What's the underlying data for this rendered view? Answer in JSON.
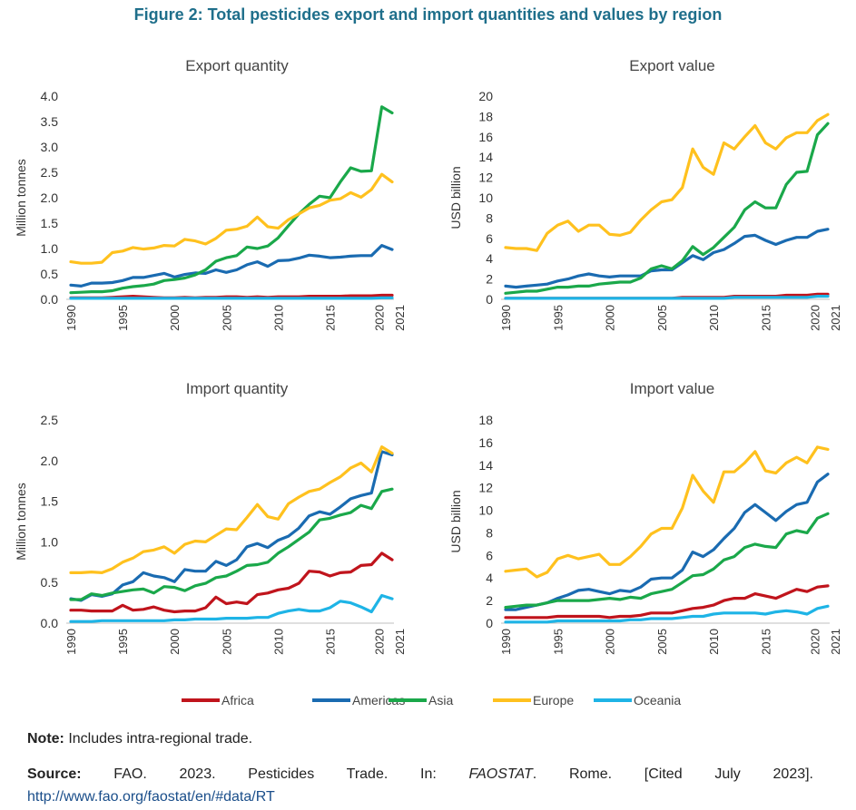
{
  "figure_title": "Figure 2: Total pesticides export and import quantities and values by region",
  "colors": {
    "Africa": "#c0141c",
    "Americas": "#1a6bb1",
    "Asia": "#1aa84a",
    "Europe": "#ffc11e",
    "Oceania": "#1eb4e6"
  },
  "legend": [
    "Africa",
    "Americas",
    "Asia",
    "Europe",
    "Oceania"
  ],
  "chart_data": [
    {
      "type": "line",
      "title": "Export quantity",
      "ylabel": "Million tonnes",
      "ylim": [
        0,
        4.0
      ],
      "yticks": [
        "0.0",
        "0.5",
        "1.0",
        "1.5",
        "2.0",
        "2.5",
        "3.0",
        "3.5",
        "4.0"
      ],
      "xticks": [
        "1990",
        "1995",
        "2000",
        "2005",
        "2010",
        "2015",
        "2020",
        "2021"
      ],
      "x": [
        1990,
        1991,
        1992,
        1993,
        1994,
        1995,
        1996,
        1997,
        1998,
        1999,
        2000,
        2001,
        2002,
        2003,
        2004,
        2005,
        2006,
        2007,
        2008,
        2009,
        2010,
        2011,
        2012,
        2013,
        2014,
        2015,
        2016,
        2017,
        2018,
        2019,
        2020,
        2021
      ],
      "series": [
        {
          "name": "Africa",
          "values": [
            0.03,
            0.03,
            0.03,
            0.03,
            0.04,
            0.05,
            0.06,
            0.05,
            0.04,
            0.03,
            0.03,
            0.04,
            0.03,
            0.04,
            0.04,
            0.05,
            0.05,
            0.04,
            0.05,
            0.04,
            0.05,
            0.05,
            0.05,
            0.06,
            0.06,
            0.06,
            0.06,
            0.07,
            0.07,
            0.07,
            0.08,
            0.08
          ]
        },
        {
          "name": "Americas",
          "values": [
            0.28,
            0.26,
            0.32,
            0.32,
            0.33,
            0.37,
            0.43,
            0.43,
            0.47,
            0.51,
            0.44,
            0.49,
            0.52,
            0.51,
            0.58,
            0.53,
            0.58,
            0.68,
            0.74,
            0.65,
            0.76,
            0.77,
            0.81,
            0.87,
            0.85,
            0.82,
            0.83,
            0.85,
            0.86,
            0.86,
            1.06,
            0.98
          ]
        },
        {
          "name": "Asia",
          "values": [
            0.13,
            0.14,
            0.15,
            0.15,
            0.17,
            0.22,
            0.25,
            0.27,
            0.3,
            0.37,
            0.39,
            0.42,
            0.48,
            0.58,
            0.75,
            0.82,
            0.86,
            1.03,
            1.0,
            1.05,
            1.21,
            1.45,
            1.68,
            1.87,
            2.03,
            2.0,
            2.31,
            2.59,
            2.52,
            2.53,
            3.79,
            3.67
          ]
        },
        {
          "name": "Europe",
          "values": [
            0.74,
            0.71,
            0.71,
            0.73,
            0.92,
            0.95,
            1.02,
            0.99,
            1.01,
            1.06,
            1.05,
            1.18,
            1.15,
            1.09,
            1.2,
            1.36,
            1.38,
            1.44,
            1.62,
            1.43,
            1.4,
            1.57,
            1.68,
            1.8,
            1.85,
            1.95,
            1.98,
            2.1,
            2.01,
            2.16,
            2.46,
            2.31
          ]
        },
        {
          "name": "Oceania",
          "values": [
            0.02,
            0.02,
            0.02,
            0.02,
            0.02,
            0.02,
            0.02,
            0.02,
            0.02,
            0.02,
            0.02,
            0.02,
            0.02,
            0.02,
            0.02,
            0.02,
            0.02,
            0.02,
            0.02,
            0.02,
            0.02,
            0.02,
            0.02,
            0.02,
            0.02,
            0.02,
            0.02,
            0.02,
            0.02,
            0.02,
            0.03,
            0.03
          ]
        }
      ]
    },
    {
      "type": "line",
      "title": "Export value",
      "ylabel": "USD billion",
      "ylim": [
        0,
        20
      ],
      "yticks": [
        "0",
        "2",
        "4",
        "6",
        "8",
        "10",
        "12",
        "14",
        "16",
        "18",
        "20"
      ],
      "xticks": [
        "1990",
        "1995",
        "2000",
        "2005",
        "2010",
        "2015",
        "2020",
        "2021"
      ],
      "x": [
        1990,
        1991,
        1992,
        1993,
        1994,
        1995,
        1996,
        1997,
        1998,
        1999,
        2000,
        2001,
        2002,
        2003,
        2004,
        2005,
        2006,
        2007,
        2008,
        2009,
        2010,
        2011,
        2012,
        2013,
        2014,
        2015,
        2016,
        2017,
        2018,
        2019,
        2020,
        2021
      ],
      "series": [
        {
          "name": "Africa",
          "values": [
            0.1,
            0.1,
            0.1,
            0.1,
            0.1,
            0.1,
            0.1,
            0.1,
            0.1,
            0.1,
            0.1,
            0.1,
            0.1,
            0.1,
            0.1,
            0.1,
            0.1,
            0.2,
            0.2,
            0.2,
            0.2,
            0.2,
            0.3,
            0.3,
            0.3,
            0.3,
            0.3,
            0.4,
            0.4,
            0.4,
            0.5,
            0.5
          ]
        },
        {
          "name": "Americas",
          "values": [
            1.3,
            1.2,
            1.3,
            1.4,
            1.5,
            1.8,
            2.0,
            2.3,
            2.5,
            2.3,
            2.2,
            2.3,
            2.3,
            2.3,
            2.8,
            2.9,
            2.9,
            3.6,
            4.3,
            3.9,
            4.6,
            4.9,
            5.5,
            6.2,
            6.3,
            5.8,
            5.4,
            5.8,
            6.1,
            6.1,
            6.7,
            6.9
          ]
        },
        {
          "name": "Asia",
          "values": [
            0.6,
            0.7,
            0.8,
            0.8,
            1.0,
            1.2,
            1.2,
            1.3,
            1.3,
            1.5,
            1.6,
            1.7,
            1.7,
            2.1,
            3.0,
            3.3,
            3.0,
            3.8,
            5.2,
            4.4,
            5.1,
            6.1,
            7.1,
            8.8,
            9.6,
            9.0,
            9.0,
            11.3,
            12.5,
            12.6,
            16.2,
            17.3
          ]
        },
        {
          "name": "Europe",
          "values": [
            5.1,
            5.0,
            5.0,
            4.8,
            6.5,
            7.3,
            7.7,
            6.7,
            7.3,
            7.3,
            6.4,
            6.3,
            6.6,
            7.8,
            8.8,
            9.6,
            9.8,
            11.0,
            14.8,
            13.0,
            12.3,
            15.4,
            14.8,
            16.0,
            17.1,
            15.4,
            14.8,
            15.9,
            16.4,
            16.4,
            17.6,
            18.2
          ]
        },
        {
          "name": "Oceania",
          "values": [
            0.1,
            0.1,
            0.1,
            0.1,
            0.1,
            0.1,
            0.1,
            0.1,
            0.1,
            0.1,
            0.1,
            0.1,
            0.1,
            0.1,
            0.1,
            0.1,
            0.1,
            0.1,
            0.1,
            0.1,
            0.1,
            0.1,
            0.2,
            0.2,
            0.2,
            0.2,
            0.2,
            0.2,
            0.2,
            0.2,
            0.3,
            0.3
          ]
        }
      ]
    },
    {
      "type": "line",
      "title": "Import quantity",
      "ylabel": "Million tonnes",
      "ylim": [
        0,
        2.5
      ],
      "yticks": [
        "0.0",
        "0.5",
        "1.0",
        "1.5",
        "2.0",
        "2.5"
      ],
      "xticks": [
        "1990",
        "1995",
        "2000",
        "2005",
        "2010",
        "2015",
        "2020",
        "2021"
      ],
      "x": [
        1990,
        1991,
        1992,
        1993,
        1994,
        1995,
        1996,
        1997,
        1998,
        1999,
        2000,
        2001,
        2002,
        2003,
        2004,
        2005,
        2006,
        2007,
        2008,
        2009,
        2010,
        2011,
        2012,
        2013,
        2014,
        2015,
        2016,
        2017,
        2018,
        2019,
        2020,
        2021
      ],
      "series": [
        {
          "name": "Africa",
          "values": [
            0.16,
            0.16,
            0.15,
            0.15,
            0.15,
            0.22,
            0.16,
            0.17,
            0.2,
            0.16,
            0.14,
            0.15,
            0.15,
            0.19,
            0.32,
            0.24,
            0.26,
            0.24,
            0.35,
            0.37,
            0.41,
            0.43,
            0.49,
            0.64,
            0.63,
            0.58,
            0.62,
            0.63,
            0.71,
            0.72,
            0.86,
            0.78
          ]
        },
        {
          "name": "Americas",
          "values": [
            0.3,
            0.28,
            0.35,
            0.33,
            0.36,
            0.47,
            0.51,
            0.62,
            0.58,
            0.56,
            0.51,
            0.66,
            0.64,
            0.64,
            0.76,
            0.71,
            0.78,
            0.94,
            0.98,
            0.93,
            1.02,
            1.07,
            1.17,
            1.32,
            1.37,
            1.34,
            1.43,
            1.53,
            1.57,
            1.6,
            2.11,
            2.07
          ]
        },
        {
          "name": "Asia",
          "values": [
            0.29,
            0.29,
            0.36,
            0.34,
            0.37,
            0.39,
            0.41,
            0.42,
            0.37,
            0.45,
            0.44,
            0.4,
            0.46,
            0.49,
            0.56,
            0.58,
            0.64,
            0.71,
            0.72,
            0.75,
            0.86,
            0.94,
            1.03,
            1.12,
            1.27,
            1.29,
            1.33,
            1.36,
            1.45,
            1.41,
            1.62,
            1.65
          ]
        },
        {
          "name": "Europe",
          "values": [
            0.62,
            0.62,
            0.63,
            0.62,
            0.67,
            0.75,
            0.8,
            0.88,
            0.9,
            0.94,
            0.86,
            0.97,
            1.01,
            1.0,
            1.08,
            1.16,
            1.15,
            1.3,
            1.46,
            1.31,
            1.28,
            1.47,
            1.55,
            1.62,
            1.65,
            1.73,
            1.8,
            1.91,
            1.97,
            1.86,
            2.17,
            2.09
          ]
        },
        {
          "name": "Oceania",
          "values": [
            0.02,
            0.02,
            0.02,
            0.03,
            0.03,
            0.03,
            0.03,
            0.03,
            0.03,
            0.03,
            0.04,
            0.04,
            0.05,
            0.05,
            0.05,
            0.06,
            0.06,
            0.06,
            0.07,
            0.07,
            0.12,
            0.15,
            0.17,
            0.15,
            0.15,
            0.19,
            0.27,
            0.25,
            0.2,
            0.14,
            0.34,
            0.3
          ]
        }
      ]
    },
    {
      "type": "line",
      "title": "Import value",
      "ylabel": "USD billion",
      "ylim": [
        0,
        18
      ],
      "yticks": [
        "0",
        "2",
        "4",
        "6",
        "8",
        "10",
        "12",
        "14",
        "16",
        "18"
      ],
      "xticks": [
        "1990",
        "1995",
        "2000",
        "2005",
        "2010",
        "2015",
        "2020",
        "2021"
      ],
      "x": [
        1990,
        1991,
        1992,
        1993,
        1994,
        1995,
        1996,
        1997,
        1998,
        1999,
        2000,
        2001,
        2002,
        2003,
        2004,
        2005,
        2006,
        2007,
        2008,
        2009,
        2010,
        2011,
        2012,
        2013,
        2014,
        2015,
        2016,
        2017,
        2018,
        2019,
        2020,
        2021
      ],
      "series": [
        {
          "name": "Africa",
          "values": [
            0.5,
            0.5,
            0.5,
            0.5,
            0.5,
            0.6,
            0.6,
            0.6,
            0.6,
            0.6,
            0.5,
            0.6,
            0.6,
            0.7,
            0.9,
            0.9,
            0.9,
            1.1,
            1.3,
            1.4,
            1.6,
            2.0,
            2.2,
            2.2,
            2.6,
            2.4,
            2.2,
            2.6,
            3.0,
            2.8,
            3.2,
            3.3
          ]
        },
        {
          "name": "Americas",
          "values": [
            1.2,
            1.2,
            1.4,
            1.6,
            1.8,
            2.2,
            2.5,
            2.9,
            3.0,
            2.8,
            2.6,
            2.9,
            2.8,
            3.2,
            3.9,
            4.0,
            4.0,
            4.7,
            6.3,
            5.9,
            6.5,
            7.5,
            8.4,
            9.8,
            10.5,
            9.8,
            9.1,
            9.9,
            10.5,
            10.7,
            12.5,
            13.2
          ]
        },
        {
          "name": "Asia",
          "values": [
            1.4,
            1.5,
            1.6,
            1.6,
            1.8,
            2.0,
            2.0,
            2.0,
            2.0,
            2.1,
            2.2,
            2.1,
            2.3,
            2.2,
            2.6,
            2.8,
            3.0,
            3.6,
            4.2,
            4.3,
            4.8,
            5.6,
            5.9,
            6.7,
            7.0,
            6.8,
            6.7,
            7.9,
            8.2,
            8.0,
            9.3,
            9.7
          ]
        },
        {
          "name": "Europe",
          "values": [
            4.6,
            4.7,
            4.8,
            4.1,
            4.5,
            5.7,
            6.0,
            5.7,
            5.9,
            6.1,
            5.2,
            5.2,
            5.9,
            6.8,
            7.9,
            8.4,
            8.4,
            10.2,
            13.1,
            11.7,
            10.7,
            13.4,
            13.4,
            14.2,
            15.2,
            13.5,
            13.3,
            14.2,
            14.7,
            14.2,
            15.6,
            15.4
          ]
        },
        {
          "name": "Oceania",
          "values": [
            0.1,
            0.1,
            0.1,
            0.1,
            0.1,
            0.2,
            0.2,
            0.2,
            0.2,
            0.2,
            0.2,
            0.2,
            0.3,
            0.3,
            0.4,
            0.4,
            0.4,
            0.5,
            0.6,
            0.6,
            0.8,
            0.9,
            0.9,
            0.9,
            0.9,
            0.8,
            1.0,
            1.1,
            1.0,
            0.8,
            1.3,
            1.5
          ]
        }
      ]
    }
  ],
  "note": {
    "label": "Note:",
    "text": " Includes intra-regional trade."
  },
  "source": {
    "label": "Source:",
    "pre": " FAO. 2023. Pesticides Trade. In: ",
    "italic": "FAOSTAT",
    "post": ". Rome. [Cited July 2023].",
    "url": "http://www.fao.org/faostat/en/#data/RT"
  }
}
